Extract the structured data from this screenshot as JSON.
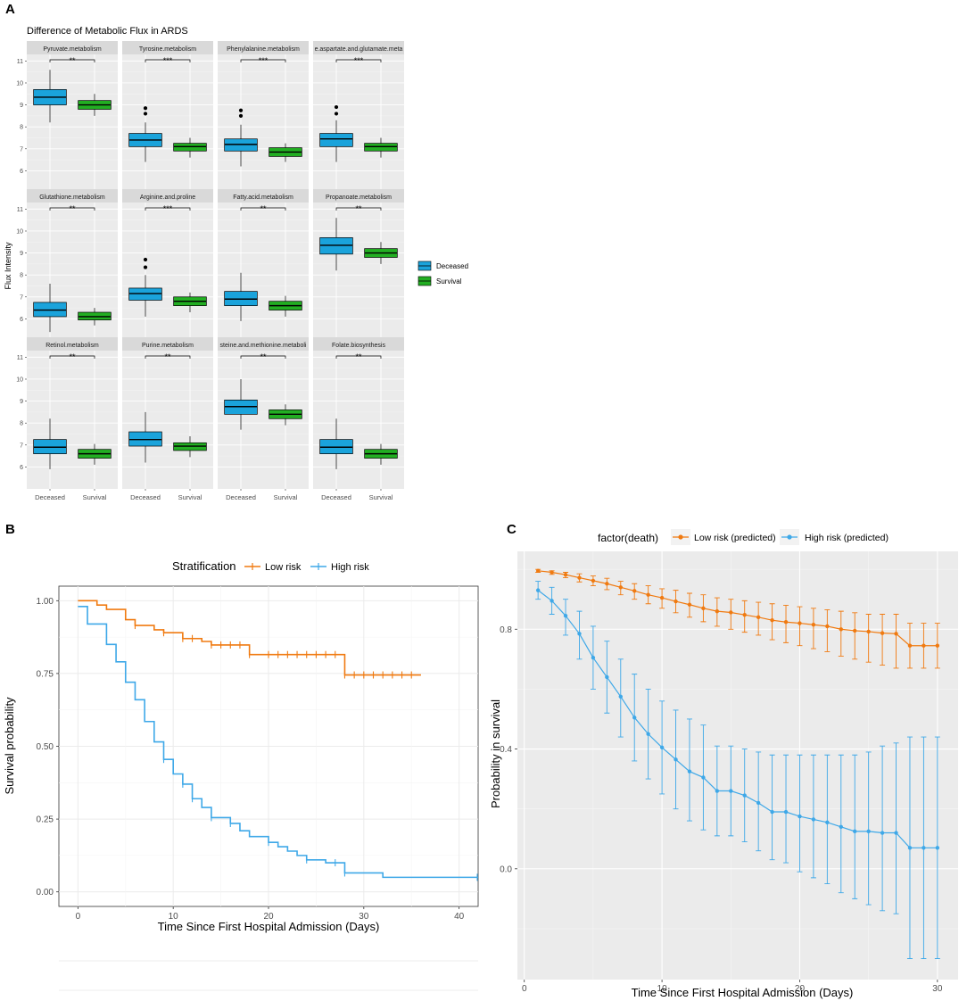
{
  "panel_labels": {
    "a": "A",
    "b": "B",
    "c": "C"
  },
  "chart_data": [
    {
      "panel": "A",
      "type": "boxplot",
      "title": "Difference of Metabolic Flux in ARDS",
      "ylabel": "Flux Intensity",
      "categories": [
        "Deceased",
        "Survival"
      ],
      "ylim": [
        5,
        11.3
      ],
      "yticks": [
        6,
        7,
        8,
        9,
        10,
        11
      ],
      "legend": {
        "position": "right",
        "entries": [
          {
            "name": "Deceased",
            "color": "#1aa3db"
          },
          {
            "name": "Survival",
            "color": "#22ae22"
          }
        ]
      },
      "facets": [
        {
          "name": "Pyruvate.metabolism",
          "sig": "**",
          "boxes": [
            {
              "group": "Deceased",
              "min": 8.2,
              "q1": 9.0,
              "median": 9.35,
              "q3": 9.7,
              "max": 10.6,
              "outliers": []
            },
            {
              "group": "Survival",
              "min": 8.5,
              "q1": 8.8,
              "median": 9.0,
              "q3": 9.2,
              "max": 9.5,
              "outliers": []
            }
          ]
        },
        {
          "name": "Tyrosine.metabolism",
          "sig": "***",
          "boxes": [
            {
              "group": "Deceased",
              "min": 6.4,
              "q1": 7.1,
              "median": 7.4,
              "q3": 7.7,
              "max": 8.2,
              "outliers": [
                8.6,
                8.85
              ]
            },
            {
              "group": "Survival",
              "min": 6.6,
              "q1": 6.9,
              "median": 7.1,
              "q3": 7.25,
              "max": 7.5,
              "outliers": []
            }
          ]
        },
        {
          "name": "Phenylalanine.metabolism",
          "sig": "***",
          "boxes": [
            {
              "group": "Deceased",
              "min": 6.2,
              "q1": 6.9,
              "median": 7.2,
              "q3": 7.45,
              "max": 8.1,
              "outliers": [
                8.5,
                8.75
              ]
            },
            {
              "group": "Survival",
              "min": 6.4,
              "q1": 6.65,
              "median": 6.85,
              "q3": 7.05,
              "max": 7.25,
              "outliers": []
            }
          ]
        },
        {
          "name": "e.aspartate.and.glutamate.meta",
          "sig": "***",
          "boxes": [
            {
              "group": "Deceased",
              "min": 6.4,
              "q1": 7.1,
              "median": 7.45,
              "q3": 7.7,
              "max": 8.3,
              "outliers": [
                8.6,
                8.9
              ]
            },
            {
              "group": "Survival",
              "min": 6.6,
              "q1": 6.9,
              "median": 7.1,
              "q3": 7.25,
              "max": 7.5,
              "outliers": []
            }
          ]
        },
        {
          "name": "Glutathione.metabolism",
          "sig": "**",
          "boxes": [
            {
              "group": "Deceased",
              "min": 5.4,
              "q1": 6.1,
              "median": 6.4,
              "q3": 6.75,
              "max": 7.6,
              "outliers": []
            },
            {
              "group": "Survival",
              "min": 5.7,
              "q1": 5.95,
              "median": 6.1,
              "q3": 6.3,
              "max": 6.5,
              "outliers": []
            }
          ]
        },
        {
          "name": "Arginine.and.proline",
          "sig": "***",
          "boxes": [
            {
              "group": "Deceased",
              "min": 6.1,
              "q1": 6.85,
              "median": 7.15,
              "q3": 7.4,
              "max": 8.0,
              "outliers": [
                8.35,
                8.7
              ]
            },
            {
              "group": "Survival",
              "min": 6.3,
              "q1": 6.6,
              "median": 6.8,
              "q3": 7.0,
              "max": 7.2,
              "outliers": []
            }
          ]
        },
        {
          "name": "Fatty.acid.metabolism",
          "sig": "**",
          "boxes": [
            {
              "group": "Deceased",
              "min": 5.9,
              "q1": 6.6,
              "median": 6.9,
              "q3": 7.25,
              "max": 8.1,
              "outliers": []
            },
            {
              "group": "Survival",
              "min": 6.1,
              "q1": 6.4,
              "median": 6.6,
              "q3": 6.8,
              "max": 7.05,
              "outliers": []
            }
          ]
        },
        {
          "name": "Propanoate.metabolism",
          "sig": "**",
          "boxes": [
            {
              "group": "Deceased",
              "min": 8.2,
              "q1": 8.95,
              "median": 9.35,
              "q3": 9.7,
              "max": 10.6,
              "outliers": []
            },
            {
              "group": "Survival",
              "min": 8.5,
              "q1": 8.8,
              "median": 9.0,
              "q3": 9.2,
              "max": 9.5,
              "outliers": []
            }
          ]
        },
        {
          "name": "Retinol.metabolism",
          "sig": "**",
          "boxes": [
            {
              "group": "Deceased",
              "min": 5.9,
              "q1": 6.6,
              "median": 6.9,
              "q3": 7.25,
              "max": 8.2,
              "outliers": []
            },
            {
              "group": "Survival",
              "min": 6.1,
              "q1": 6.4,
              "median": 6.6,
              "q3": 6.8,
              "max": 7.05,
              "outliers": []
            }
          ]
        },
        {
          "name": "Purine.metabolism",
          "sig": "**",
          "boxes": [
            {
              "group": "Deceased",
              "min": 6.2,
              "q1": 6.95,
              "median": 7.25,
              "q3": 7.6,
              "max": 8.5,
              "outliers": []
            },
            {
              "group": "Survival",
              "min": 6.45,
              "q1": 6.75,
              "median": 6.95,
              "q3": 7.1,
              "max": 7.4,
              "outliers": []
            }
          ]
        },
        {
          "name": "steine.and.methionine.metaboli",
          "sig": "**",
          "boxes": [
            {
              "group": "Deceased",
              "min": 7.7,
              "q1": 8.4,
              "median": 8.75,
              "q3": 9.05,
              "max": 10.0,
              "outliers": []
            },
            {
              "group": "Survival",
              "min": 7.9,
              "q1": 8.2,
              "median": 8.4,
              "q3": 8.6,
              "max": 8.85,
              "outliers": []
            }
          ]
        },
        {
          "name": "Folate.biosynthesis",
          "sig": "**",
          "boxes": [
            {
              "group": "Deceased",
              "min": 5.9,
              "q1": 6.6,
              "median": 6.9,
              "q3": 7.25,
              "max": 8.2,
              "outliers": []
            },
            {
              "group": "Survival",
              "min": 6.1,
              "q1": 6.4,
              "median": 6.6,
              "q3": 6.8,
              "max": 7.05,
              "outliers": []
            }
          ]
        }
      ]
    },
    {
      "panel": "B",
      "type": "line",
      "subtype": "kaplan-meier step",
      "xlabel": "Time Since First Hospital Admission (Days)",
      "ylabel": "Survival probability",
      "xlim": [
        -2,
        42
      ],
      "ylim": [
        -0.05,
        1.05
      ],
      "xticks": [
        0,
        10,
        20,
        30,
        40
      ],
      "yticks": [
        0.0,
        0.25,
        0.5,
        0.75,
        1.0
      ],
      "ytick_labels": [
        "0.00",
        "0.25",
        "0.50",
        "0.75",
        "1.00"
      ],
      "legend": {
        "title": "Stratification",
        "position": "top"
      },
      "series": [
        {
          "name": "Low risk",
          "color": "#f07a10",
          "steps": [
            [
              0,
              1.0
            ],
            [
              2,
              0.985
            ],
            [
              3,
              0.97
            ],
            [
              5,
              0.935
            ],
            [
              6,
              0.915
            ],
            [
              8,
              0.9
            ],
            [
              9,
              0.89
            ],
            [
              11,
              0.87
            ],
            [
              13,
              0.86
            ],
            [
              14,
              0.848
            ],
            [
              18,
              0.815
            ],
            [
              28,
              0.745
            ],
            [
              36,
              0.745
            ]
          ],
          "censors": [
            6,
            9,
            11,
            12,
            14,
            15,
            16,
            17,
            18,
            20,
            21,
            22,
            23,
            24,
            25,
            26,
            27,
            28,
            29,
            30,
            31,
            32,
            33,
            34,
            35
          ]
        },
        {
          "name": "High risk",
          "color": "#3ea8e8",
          "steps": [
            [
              0,
              0.98
            ],
            [
              1,
              0.92
            ],
            [
              3,
              0.85
            ],
            [
              4,
              0.79
            ],
            [
              5,
              0.72
            ],
            [
              6,
              0.66
            ],
            [
              7,
              0.585
            ],
            [
              8,
              0.515
            ],
            [
              9,
              0.455
            ],
            [
              10,
              0.405
            ],
            [
              11,
              0.37
            ],
            [
              12,
              0.32
            ],
            [
              13,
              0.29
            ],
            [
              14,
              0.255
            ],
            [
              16,
              0.235
            ],
            [
              17,
              0.21
            ],
            [
              18,
              0.19
            ],
            [
              20,
              0.17
            ],
            [
              21,
              0.155
            ],
            [
              22,
              0.14
            ],
            [
              23,
              0.125
            ],
            [
              24,
              0.11
            ],
            [
              26,
              0.1
            ],
            [
              28,
              0.065
            ],
            [
              32,
              0.05
            ],
            [
              42,
              0.05
            ]
          ],
          "censors": [
            9,
            11,
            12,
            14,
            16,
            20,
            24,
            27,
            28,
            42
          ]
        }
      ]
    },
    {
      "panel": "C",
      "type": "line",
      "subtype": "points with error bars",
      "xlabel": "Time Since First Hospital Admission (Days)",
      "ylabel": "Probability in survival",
      "xlim": [
        -0.5,
        31.5
      ],
      "ylim": [
        -0.37,
        1.06
      ],
      "xticks": [
        0,
        10,
        20,
        30
      ],
      "yticks": [
        0.0,
        0.4,
        0.8
      ],
      "ytick_labels": [
        "0.0",
        "0.4",
        "0.8"
      ],
      "legend": {
        "title": "factor(death)",
        "position": "top"
      },
      "x": [
        1,
        2,
        3,
        4,
        5,
        6,
        7,
        8,
        9,
        10,
        11,
        12,
        13,
        14,
        15,
        16,
        17,
        18,
        19,
        20,
        21,
        22,
        23,
        24,
        25,
        26,
        27,
        28,
        29,
        30
      ],
      "series": [
        {
          "name": "Low risk (predicted)",
          "color": "#f07a10",
          "values": [
            0.995,
            0.99,
            0.982,
            0.972,
            0.962,
            0.952,
            0.94,
            0.928,
            0.915,
            0.905,
            0.893,
            0.882,
            0.87,
            0.86,
            0.856,
            0.848,
            0.84,
            0.83,
            0.824,
            0.82,
            0.815,
            0.81,
            0.8,
            0.795,
            0.792,
            0.787,
            0.785,
            0.745,
            0.745,
            0.745
          ],
          "lower": [
            0.99,
            0.983,
            0.972,
            0.958,
            0.945,
            0.932,
            0.915,
            0.9,
            0.885,
            0.87,
            0.855,
            0.84,
            0.825,
            0.81,
            0.8,
            0.79,
            0.78,
            0.765,
            0.755,
            0.745,
            0.735,
            0.725,
            0.71,
            0.7,
            0.69,
            0.68,
            0.67,
            0.67,
            0.67,
            0.67
          ],
          "upper": [
            1.0,
            0.995,
            0.99,
            0.985,
            0.978,
            0.97,
            0.96,
            0.952,
            0.945,
            0.935,
            0.93,
            0.92,
            0.915,
            0.905,
            0.9,
            0.895,
            0.89,
            0.885,
            0.88,
            0.875,
            0.87,
            0.865,
            0.86,
            0.855,
            0.85,
            0.85,
            0.85,
            0.82,
            0.82,
            0.82
          ]
        },
        {
          "name": "High risk (predicted)",
          "color": "#3ea8e8",
          "values": [
            0.93,
            0.895,
            0.845,
            0.785,
            0.705,
            0.64,
            0.575,
            0.505,
            0.45,
            0.405,
            0.365,
            0.325,
            0.305,
            0.26,
            0.26,
            0.245,
            0.22,
            0.19,
            0.19,
            0.175,
            0.165,
            0.155,
            0.14,
            0.125,
            0.125,
            0.12,
            0.12,
            0.07,
            0.07,
            0.07
          ],
          "lower": [
            0.9,
            0.85,
            0.78,
            0.7,
            0.6,
            0.52,
            0.44,
            0.36,
            0.3,
            0.25,
            0.2,
            0.16,
            0.13,
            0.11,
            0.11,
            0.09,
            0.06,
            0.03,
            0.02,
            -0.01,
            -0.03,
            -0.05,
            -0.08,
            -0.1,
            -0.12,
            -0.14,
            -0.15,
            -0.3,
            -0.3,
            -0.3
          ],
          "upper": [
            0.96,
            0.94,
            0.9,
            0.86,
            0.81,
            0.76,
            0.7,
            0.65,
            0.6,
            0.56,
            0.53,
            0.5,
            0.48,
            0.41,
            0.41,
            0.4,
            0.39,
            0.38,
            0.38,
            0.38,
            0.38,
            0.38,
            0.38,
            0.38,
            0.39,
            0.41,
            0.42,
            0.44,
            0.44,
            0.44
          ]
        }
      ]
    }
  ]
}
